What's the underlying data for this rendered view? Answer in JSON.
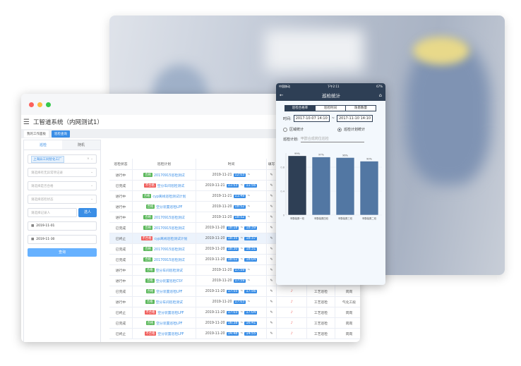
{
  "desktop": {
    "title": "工智道系统（内网测试1）",
    "tabs": [
      "我的工作面板",
      "巡检查询"
    ],
    "side_tabs": [
      "巡检",
      "随机"
    ],
    "org_chip": "上海异工同智化工厂",
    "filters": [
      "请选择有无异常项记录",
      "请选择是否合格",
      "请选择巡检状态"
    ],
    "recorder_placeholder": "请选择记录人",
    "select_btn": "选人",
    "date_from": "2019-11-01",
    "date_to": "2019-11-30",
    "query_btn": "查询",
    "columns": [
      "巡检状态",
      "巡检计划",
      "时间",
      "填写"
    ],
    "rows": [
      {
        "status": "进行中",
        "result": "合格",
        "plan": "20170915巡检测试",
        "date": "2019-11-21",
        "start": "12:03",
        "end": "",
        "tail": "",
        "type": "",
        "post": ""
      },
      {
        "status": "已完成",
        "result": "不合格",
        "plan": "空分车间巡检测试",
        "date": "2019-11-21",
        "start": "11:53",
        "end": "11:56",
        "tail": "",
        "type": "",
        "post": ""
      },
      {
        "status": "进行中",
        "result": "合格",
        "plan": "cyp离线巡检测试计划",
        "date": "2019-11-21",
        "start": "11:49",
        "end": "",
        "tail": "",
        "type": "",
        "post": ""
      },
      {
        "status": "进行中",
        "result": "合格",
        "plan": "空分装置巡检LPF",
        "date": "2019-11-20",
        "start": "18:52",
        "end": "",
        "tail": "",
        "type": "",
        "post": ""
      },
      {
        "status": "进行中",
        "result": "合格",
        "plan": "20170915巡检测试",
        "date": "2019-11-20",
        "start": "18:52",
        "end": "",
        "tail": "",
        "type": "",
        "post": ""
      },
      {
        "status": "已完成",
        "result": "合格",
        "plan": "20170915巡检测试",
        "date": "2019-11-20",
        "start": "18:18",
        "end": "18:39",
        "tail": "",
        "type": "",
        "post": ""
      },
      {
        "status": "已终止",
        "result": "不合格",
        "plan": "cyp离线巡检测试计划",
        "date": "2019-11-20",
        "start": "18:35",
        "end": "18:37",
        "tail": "",
        "type": "",
        "post": ""
      },
      {
        "status": "已完成",
        "result": "合格",
        "plan": "20170915巡检测试",
        "date": "2019-11-20",
        "start": "18:30",
        "end": "18:31",
        "tail": "",
        "type": "",
        "post": ""
      },
      {
        "status": "已完成",
        "result": "合格",
        "plan": "20170915巡检测试",
        "date": "2019-11-20",
        "start": "18:02",
        "end": "18:04",
        "tail": "",
        "type": "",
        "post": ""
      },
      {
        "status": "进行中",
        "result": "合格",
        "plan": "空分车间巡检测试",
        "date": "2019-11-20",
        "start": "17:59",
        "end": "",
        "tail": "",
        "type": "",
        "post": ""
      },
      {
        "status": "进行中",
        "result": "合格",
        "plan": "空分装置巡检CSY",
        "date": "2019-11-20",
        "start": "17:59",
        "end": "",
        "tail": "",
        "type": "",
        "post": ""
      },
      {
        "status": "已完成",
        "result": "合格",
        "plan": "空分装置巡检LPF",
        "date": "2019-11-20",
        "start": "17:55",
        "end": "17:56",
        "tail": "",
        "type": "工艺巡检",
        "post": "岗岗"
      },
      {
        "status": "进行中",
        "result": "合格",
        "plan": "空分车间巡检测试",
        "date": "2019-11-20",
        "start": "17:03",
        "end": "",
        "tail": "",
        "type": "工艺巡检",
        "post": "气化工段"
      },
      {
        "status": "已终止",
        "result": "不合格",
        "plan": "空分装置巡检LPF",
        "date": "2019-11-20",
        "start": "17:03",
        "end": "17:04",
        "tail": "",
        "type": "工艺巡检",
        "post": "岗岗"
      },
      {
        "status": "已完成",
        "result": "合格",
        "plan": "空分装置巡检LPF",
        "date": "2019-11-20",
        "start": "16:38",
        "end": "16:41",
        "tail": "",
        "type": "工艺巡检",
        "post": "岗岗"
      },
      {
        "status": "已终止",
        "result": "不合格",
        "plan": "空分装置巡检LPF",
        "date": "2019-11-20",
        "start": "14:48",
        "end": "14:55",
        "tail": "",
        "type": "工艺巡检",
        "post": "岗岗"
      }
    ],
    "colors": {
      "pass": "#5cb85c",
      "fail": "#f0605e",
      "accent": "#3a8ee6"
    }
  },
  "phone": {
    "carrier": "中国移动",
    "time": "下午2:11",
    "battery": "67%",
    "title": "巡检统计",
    "segments": [
      "巡检合格率",
      "巡检时间",
      "隐患数量"
    ],
    "time_label": "时间:",
    "time_from": "2017-10-07 14:10",
    "time_sep": "~",
    "time_to": "2017-11-10 14:10",
    "radios": [
      "区域统计",
      "巡检计划统计"
    ],
    "plan_label": "巡检计划:",
    "plan_value": "甲醇合成岗位巡检"
  },
  "chart_data": {
    "type": "bar",
    "categories": [
      "甲醇装置一班",
      "甲醇装置四班",
      "甲醇装置三班",
      "甲醇装置二班"
    ],
    "values": [
      0.99,
      0.97,
      0.96,
      0.9
    ],
    "data_labels": [
      "99%",
      "97%",
      "96%",
      "90%"
    ],
    "yticks": [
      "0",
      "0.4",
      "0.8"
    ],
    "ylim": [
      0,
      1
    ],
    "colors": [
      "#2e3f55",
      "#5277a3",
      "#5277a3",
      "#5277a3"
    ]
  }
}
